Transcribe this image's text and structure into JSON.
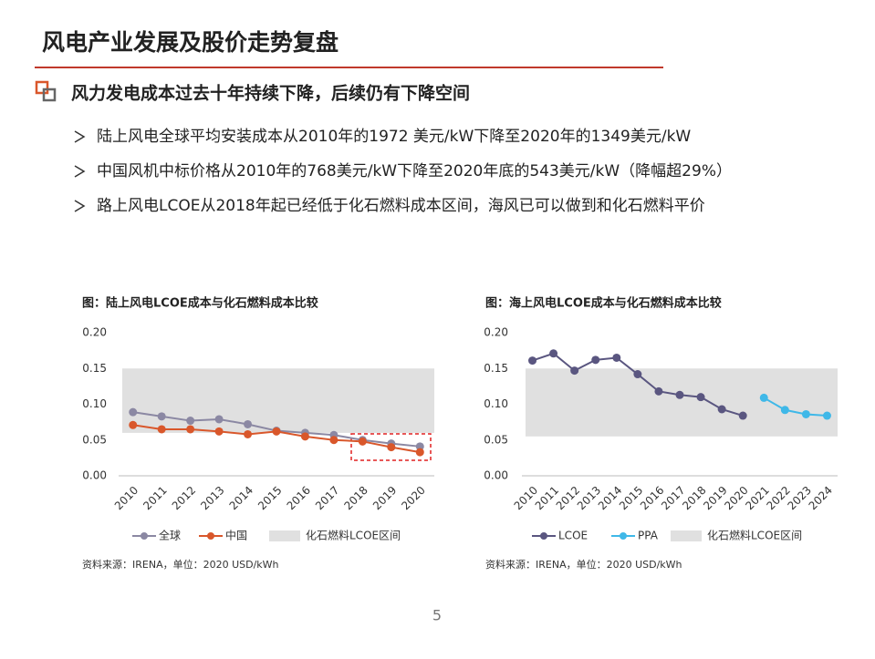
{
  "header": {
    "title": "风电产业发展及股价走势复盘",
    "subtitle": "风力发电成本过去十年持续下降，后续仍有下降空间"
  },
  "bullets": [
    "陆上风电全球平均安装成本从2010年的1972 美元/kW下降至2020年的1349美元/kW",
    "中国风机中标价格从2010年的768美元/kW下降至2020年底的543美元/kW（降幅超29%）",
    "路上风电LCOE从2018年起已经低于化石燃料成本区间，海风已可以做到和化石燃料平价"
  ],
  "page_number": "5",
  "chart_data": [
    {
      "type": "line",
      "title": "图：陆上风电LCOE成本与化石燃料成本比较",
      "categories": [
        "2010",
        "2011",
        "2012",
        "2013",
        "2014",
        "2015",
        "2016",
        "2017",
        "2018",
        "2019",
        "2020"
      ],
      "series": [
        {
          "name": "全球",
          "color": "#8b88a3",
          "values": [
            0.089,
            0.083,
            0.077,
            0.079,
            0.072,
            0.063,
            0.06,
            0.057,
            0.05,
            0.045,
            0.041
          ]
        },
        {
          "name": "中国",
          "color": "#d9572b",
          "values": [
            0.071,
            0.065,
            0.065,
            0.062,
            0.058,
            0.062,
            0.055,
            0.05,
            0.048,
            0.04,
            0.033
          ]
        }
      ],
      "range_band": {
        "name": "化石燃料LCOE区间",
        "color": "#e0e0e0",
        "values": [
          0.06,
          0.15
        ]
      },
      "ylim": [
        0,
        0.2
      ],
      "yticks": [
        {
          "value": 0,
          "label": "0.00"
        },
        {
          "value": 0.05,
          "label": "0.05"
        },
        {
          "value": 0.1,
          "label": "0.10"
        },
        {
          "value": 0.15,
          "label": "0.15"
        },
        {
          "value": 0.2,
          "label": "0.20"
        }
      ],
      "source": "资料来源：IRENA，单位：2020 USD/kWh"
    },
    {
      "type": "line",
      "title": "图：海上风电LCOE成本与化石燃料成本比较",
      "categories": [
        "2010",
        "2011",
        "2012",
        "2013",
        "2014",
        "2015",
        "2016",
        "2017",
        "2018",
        "2019",
        "2020",
        "2021",
        "2022",
        "2023",
        "2024"
      ],
      "series": [
        {
          "name": "LCOE",
          "color": "#5a5680",
          "values": [
            0.161,
            0.171,
            0.147,
            0.162,
            0.165,
            0.142,
            0.118,
            0.113,
            0.11,
            0.093,
            0.084,
            null,
            null,
            null,
            null
          ]
        },
        {
          "name": "PPA",
          "color": "#3fb8e8",
          "values": [
            null,
            null,
            null,
            null,
            null,
            null,
            null,
            null,
            null,
            null,
            null,
            0.109,
            0.092,
            0.086,
            0.084
          ]
        }
      ],
      "range_band": {
        "name": "化石燃料LCOE区间",
        "color": "#e0e0e0",
        "values": [
          0.055,
          0.15
        ]
      },
      "ylim": [
        0,
        0.2
      ],
      "yticks": [
        {
          "value": 0,
          "label": "0.00"
        },
        {
          "value": 0.05,
          "label": "0.05"
        },
        {
          "value": 0.1,
          "label": "0.10"
        },
        {
          "value": 0.15,
          "label": "0.15"
        },
        {
          "value": 0.2,
          "label": "0.20"
        }
      ],
      "source": "资料来源：IRENA，单位：2020 USD/kWh"
    }
  ]
}
